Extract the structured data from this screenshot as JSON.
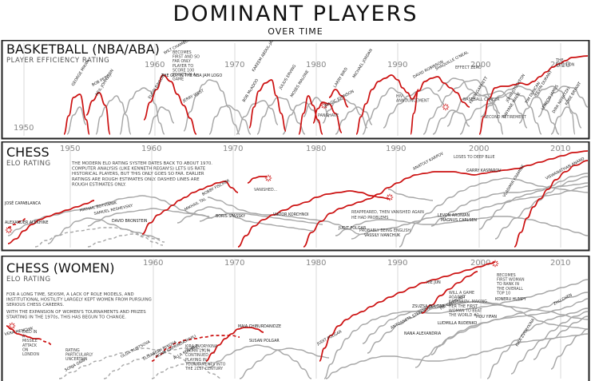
{
  "header": {
    "title": "DOMINANT PLAYERS",
    "subtitle": "OVER TIME"
  },
  "colors": {
    "dominant": "#cc1111",
    "others": "#a6a6a6",
    "frame": "#222222",
    "decade": "#999999"
  },
  "chart_data": [
    {
      "type": "line",
      "title": "BASKETBALL (NBA/ABA)",
      "ylabel": "PLAYER EFFICIENCY RATING",
      "xlim": [
        1949,
        2015
      ],
      "decades": [
        "1950",
        "1960",
        "1970",
        "1980",
        "1990",
        "2000",
        "2010"
      ],
      "labels": [
        "GEORGE MIKAN",
        "BOB PETTIT",
        "NEIL JOHNSTON",
        "WILT CHAMBERLAIN",
        "ELGIN BAYLOR",
        "JERRY WEST",
        "THE GUY IN THE NBA JAM LOGO",
        "KAREEM ABDUL-JABBAR",
        "BOB McADOO",
        "JULIUS ERVING",
        "MOSES MALONE",
        "MAGIC JOHNSON",
        "LARRY BIRD",
        "MICHAEL JORDAN",
        "DAVID ROBINSON",
        "SHAQUILLE O'NEAL",
        "KEVIN GARNETT",
        "DWYANE WADE",
        "LEBRON JAMES",
        "KEVIN DURANT",
        "TIM DUNCAN",
        "KOBE BRYANT",
        "DIRK NOWITZKI",
        "JOHN STOCKTON"
      ],
      "notes": [
        "BECOMES FIRST AND SO FAR ONLY PLAYER TO SCORE 100 POINTS IN A GAME",
        "HIV ANNOUNCEMENT",
        "BASEBALL CAREER",
        "EFFECT ZERO",
        "SECOND RETIREMENT",
        "THE DECISION",
        "PANGHAVE"
      ]
    },
    {
      "type": "line",
      "title": "CHESS",
      "ylabel": "ELO RATING",
      "xlim": [
        1943,
        2015
      ],
      "decades": [
        "1950",
        "1960",
        "1970",
        "1980",
        "1990",
        "2000",
        "2010"
      ],
      "labels": [
        "JOSÉ CAPABLANCA",
        "ALEXANDER ALEKHINE",
        "MIKHAIL BOTVINNIK",
        "SAMUEL RESHEVSKY",
        "DAVID BRONSTEIN",
        "MIKHAIL TAL",
        "BOBBY FISCHER",
        "BORIS SPASSKY",
        "VIKTOR KORCHNOI",
        "ANATOLY KARPOV",
        "GARRY KASPAROV",
        "VLADIMIR KRAMNIK",
        "VISWANATHAN ANAND",
        "LEVON ARONIAN",
        "MAGNUS CARLSEN",
        "JUDIT POLGAR",
        "VASSILY IVANCHUK"
      ],
      "notes": [
        "THE MODERN ELO RATING SYSTEM DATES BACK TO ABOUT 1970. COMPUTER ANALYSIS (LIKE KENNETH REGAN'S) LETS US RATE HISTORICAL PLAYERS, BUT THIS ONLY GOES SO FAR. EARLIER RATINGS ARE ROUGH ESTIMATES ONLY. DASHED LINES ARE ROUGH ESTIMATES ONLY.",
        "VANISHED...",
        "REAPPEARED, THEN VANISHED AGAIN",
        "HE HAD PROBLEMS",
        "LOSES TO DEEP BLUE",
        "PROBABLY BEING ENGLISH"
      ]
    },
    {
      "type": "line",
      "title": "CHESS (WOMEN)",
      "ylabel": "ELO RATING",
      "xlim": [
        1943,
        2015
      ],
      "decades": [
        "1960",
        "1970",
        "1980",
        "1990",
        "2000",
        "2010"
      ],
      "labels": [
        "VERA MENCHIK",
        "SONJA GRAF",
        "OLGA RUBTSOVA",
        "ELISABETH BYKOVA",
        "NONA GAPRINDASHVILI",
        "ALLA KUSHNIR",
        "MAIA CHIBURDANIDZE",
        "SUSAN POLGAR",
        "JUDIT POLGAR",
        "XIE JUN",
        "ZSUZSA POLGAR",
        "ANTOANETA STEFANOVA",
        "PIA CRAMLING",
        "KONERU HUMPY",
        "HOU YIFAN",
        "ZHU CHEN",
        "KIRA ZVORYKINA",
        "LUDMILLA RUDENKO",
        "NANA ALEXANDRIA"
      ],
      "notes": [
        "FOR A LONG TIME, SEXISM, A LACK OF ROLE MODELS, AND INSTITUTIONAL HOSTILITY LARGELY KEPT WOMEN FROM PURSUING SERIOUS CHESS CAREERS.",
        "WITH THE EXPANSION OF WOMEN'S TOURNAMENTS AND PRIZES STARTING IN THE 1970s, THIS HAS BEGUN TO CHANGE.",
        "DIED IN A MISSILE ATTACK ON LONDON",
        "KIRA ZVORYKINA (BORN 1919) CONTINUED PLAYING IN TOURNAMENTS INTO THE 21ST CENTURY",
        "WILL A GAME AGAINST KASPAROV, MAKING HER THE FIRST WOMAN TO BEAT THE WORLD #1",
        "BECOMES FIRST WOMAN TO RANK IN THE OVERALL TOP 10",
        "RATING PARTICULARLY UNCERTAIN"
      ]
    }
  ]
}
